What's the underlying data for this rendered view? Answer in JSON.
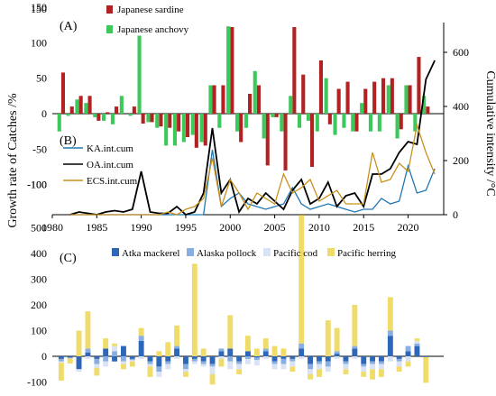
{
  "figure": {
    "panel_a_label": "(A)",
    "panel_b_label": "(B)",
    "panel_c_label": "(C)",
    "left_axis_label": "Growth rate of Catches /%",
    "right_axis_label": "Cumulative intensity /°C"
  },
  "chart_data": [
    {
      "panel": "A",
      "type": "bar",
      "x": [
        1981,
        1982,
        1983,
        1984,
        1985,
        1986,
        1987,
        1988,
        1989,
        1990,
        1991,
        1992,
        1993,
        1994,
        1995,
        1996,
        1997,
        1998,
        1999,
        2000,
        2001,
        2002,
        2003,
        2004,
        2005,
        2006,
        2007,
        2008,
        2009,
        2010,
        2011,
        2012,
        2013,
        2014,
        2015,
        2016,
        2017,
        2018,
        2019,
        2020,
        2021,
        2022
      ],
      "series": [
        {
          "name": "Japanese sardine",
          "color": "#b22222",
          "values": [
            58,
            10,
            25,
            25,
            -10,
            2,
            10,
            0,
            10,
            -14,
            -12,
            -18,
            -20,
            -25,
            -33,
            -48,
            -45,
            40,
            40,
            122,
            -40,
            28,
            40,
            -73,
            -5,
            -80,
            122,
            55,
            -75,
            75,
            -15,
            35,
            45,
            -25,
            35,
            45,
            50,
            50,
            -22,
            40,
            80,
            10
          ]
        },
        {
          "name": "Japanese anchovy",
          "color": "#3cc85a",
          "values": [
            -25,
            -3,
            20,
            15,
            -5,
            -10,
            -15,
            25,
            -3,
            110,
            -12,
            -20,
            -45,
            -45,
            -40,
            -30,
            -40,
            40,
            -20,
            123,
            -25,
            -20,
            60,
            -35,
            -5,
            -25,
            25,
            -20,
            -10,
            -25,
            50,
            -30,
            -20,
            -25,
            15,
            -25,
            -25,
            40,
            -35,
            40,
            -25,
            25
          ]
        }
      ],
      "ylim": [
        -150,
        150
      ],
      "yticks": [
        -100,
        -50,
        0,
        50,
        100,
        150
      ]
    },
    {
      "panel": "B",
      "type": "line",
      "x": [
        1982,
        1983,
        1984,
        1985,
        1986,
        1987,
        1988,
        1989,
        1990,
        1991,
        1992,
        1993,
        1994,
        1995,
        1996,
        1997,
        1998,
        1999,
        2000,
        2001,
        2002,
        2003,
        2004,
        2005,
        2006,
        2007,
        2008,
        2009,
        2010,
        2011,
        2012,
        2013,
        2014,
        2015,
        2016,
        2017,
        2018,
        2019,
        2020,
        2021,
        2022,
        2023
      ],
      "series": [
        {
          "name": "KA.int.cum",
          "color": "#1f77b4",
          "values": [
            0,
            0,
            0,
            0,
            0,
            0,
            0,
            0,
            0,
            0,
            0,
            0,
            0,
            0,
            0,
            0,
            240,
            30,
            60,
            80,
            40,
            30,
            20,
            30,
            40,
            100,
            40,
            20,
            30,
            40,
            30,
            20,
            10,
            20,
            20,
            60,
            40,
            50,
            180,
            80,
            90,
            170
          ]
        },
        {
          "name": "OA.int.cum",
          "color": "#000000",
          "values": [
            0,
            10,
            5,
            0,
            10,
            15,
            10,
            20,
            160,
            10,
            5,
            5,
            30,
            0,
            10,
            80,
            320,
            80,
            130,
            10,
            60,
            40,
            80,
            50,
            20,
            90,
            130,
            40,
            60,
            120,
            30,
            70,
            80,
            30,
            150,
            150,
            170,
            230,
            270,
            260,
            500,
            570
          ]
        },
        {
          "name": "ECS.int.cum",
          "color": "#c8901e",
          "values": [
            0,
            0,
            0,
            0,
            0,
            0,
            0,
            0,
            0,
            0,
            0,
            10,
            0,
            20,
            30,
            60,
            210,
            30,
            130,
            80,
            20,
            80,
            60,
            40,
            150,
            80,
            100,
            130,
            50,
            70,
            90,
            40,
            40,
            40,
            230,
            120,
            130,
            190,
            160,
            330,
            230,
            150
          ]
        }
      ],
      "yaxis_side": "right",
      "ylim": [
        0,
        700
      ],
      "yticks": [
        0,
        200,
        400,
        600
      ],
      "xlim": [
        1980,
        2024
      ],
      "xticks": [
        1980,
        1985,
        1990,
        1995,
        2000,
        2005,
        2010,
        2015,
        2020
      ]
    },
    {
      "panel": "C",
      "type": "bar",
      "x": [
        1981,
        1982,
        1983,
        1984,
        1985,
        1986,
        1987,
        1988,
        1989,
        1990,
        1991,
        1992,
        1993,
        1994,
        1995,
        1996,
        1997,
        1998,
        1999,
        2000,
        2001,
        2002,
        2003,
        2004,
        2005,
        2006,
        2007,
        2008,
        2009,
        2010,
        2011,
        2012,
        2013,
        2014,
        2015,
        2016,
        2017,
        2018,
        2019,
        2020,
        2021,
        2022
      ],
      "series": [
        {
          "name": "Atka mackerel",
          "color": "#2e66b8",
          "values": [
            -10,
            -5,
            -50,
            15,
            -10,
            30,
            -20,
            40,
            -10,
            60,
            -20,
            -40,
            -20,
            30,
            -30,
            -10,
            -20,
            -30,
            20,
            30,
            -20,
            20,
            -5,
            20,
            -20,
            -10,
            -10,
            30,
            -30,
            -20,
            -20,
            10,
            -20,
            30,
            -30,
            -20,
            -20,
            80,
            -10,
            20,
            40,
            -3
          ]
        },
        {
          "name": "Alaska pollock",
          "color": "#8aaee0",
          "values": [
            -10,
            -3,
            0,
            15,
            -20,
            -20,
            20,
            -20,
            -5,
            20,
            -10,
            -20,
            -10,
            10,
            -20,
            -10,
            -10,
            -10,
            10,
            -20,
            -10,
            -10,
            -10,
            10,
            -10,
            -20,
            -10,
            20,
            -20,
            -10,
            -20,
            10,
            -10,
            10,
            -10,
            -10,
            -10,
            20,
            -10,
            20,
            10,
            0
          ]
        },
        {
          "name": "Pacific cod",
          "color": "#d9e3f5",
          "values": [
            -5,
            0,
            -10,
            -10,
            -15,
            -20,
            20,
            -10,
            -5,
            -10,
            -10,
            -20,
            -20,
            -10,
            -10,
            -10,
            -10,
            -30,
            -10,
            -30,
            -20,
            -20,
            -20,
            -10,
            -20,
            -20,
            -20,
            -10,
            -20,
            -20,
            -20,
            -10,
            -20,
            -10,
            -20,
            -20,
            -20,
            -20,
            -20,
            -20,
            10,
            0
          ]
        },
        {
          "name": "Pacific herring",
          "color": "#f0dc6a",
          "values": [
            -70,
            -20,
            100,
            145,
            -30,
            40,
            10,
            -20,
            -20,
            30,
            -40,
            20,
            55,
            80,
            -20,
            360,
            30,
            -40,
            -30,
            130,
            -20,
            60,
            30,
            40,
            40,
            30,
            -20,
            500,
            -20,
            -30,
            140,
            90,
            -20,
            160,
            -20,
            -40,
            -30,
            130,
            -20,
            -20,
            10,
            -100
          ]
        }
      ],
      "ylim": [
        -100,
        500
      ],
      "yticks": [
        -100,
        0,
        100,
        200,
        300,
        400,
        500
      ]
    }
  ]
}
